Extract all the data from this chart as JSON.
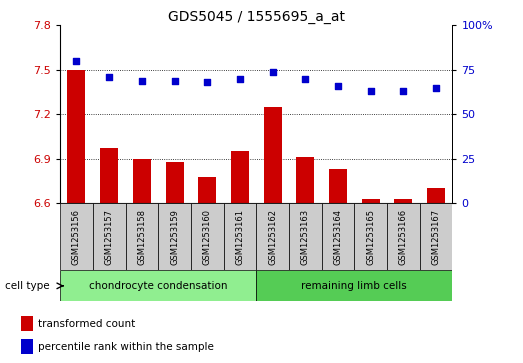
{
  "title": "GDS5045 / 1555695_a_at",
  "samples": [
    "GSM1253156",
    "GSM1253157",
    "GSM1253158",
    "GSM1253159",
    "GSM1253160",
    "GSM1253161",
    "GSM1253162",
    "GSM1253163",
    "GSM1253164",
    "GSM1253165",
    "GSM1253166",
    "GSM1253167"
  ],
  "bar_values": [
    7.5,
    6.97,
    6.9,
    6.88,
    6.78,
    6.95,
    7.25,
    6.91,
    6.83,
    6.63,
    6.63,
    6.7
  ],
  "dot_values": [
    80,
    71,
    69,
    69,
    68,
    70,
    74,
    70,
    66,
    63,
    63,
    65
  ],
  "ylim_left": [
    6.6,
    7.8
  ],
  "ylim_right": [
    0,
    100
  ],
  "yticks_left": [
    6.6,
    6.9,
    7.2,
    7.5,
    7.8
  ],
  "yticks_right": [
    0,
    25,
    50,
    75,
    100
  ],
  "bar_color": "#cc0000",
  "dot_color": "#0000cc",
  "cell_types": [
    {
      "label": "chondrocyte condensation",
      "start": 0,
      "end": 6,
      "color": "#90ee90"
    },
    {
      "label": "remaining limb cells",
      "start": 6,
      "end": 12,
      "color": "#55cc55"
    }
  ],
  "cell_type_label": "cell type",
  "legend_bar_label": "transformed count",
  "legend_dot_label": "percentile rank within the sample",
  "bg_color": "#ffffff",
  "plot_bg_color": "#ffffff",
  "tick_label_color_left": "#cc0000",
  "tick_label_color_right": "#0000cc",
  "title_fontsize": 10,
  "bar_width": 0.55,
  "hlines": [
    7.5,
    7.2,
    6.9
  ],
  "cell_bg_color": "#cccccc"
}
